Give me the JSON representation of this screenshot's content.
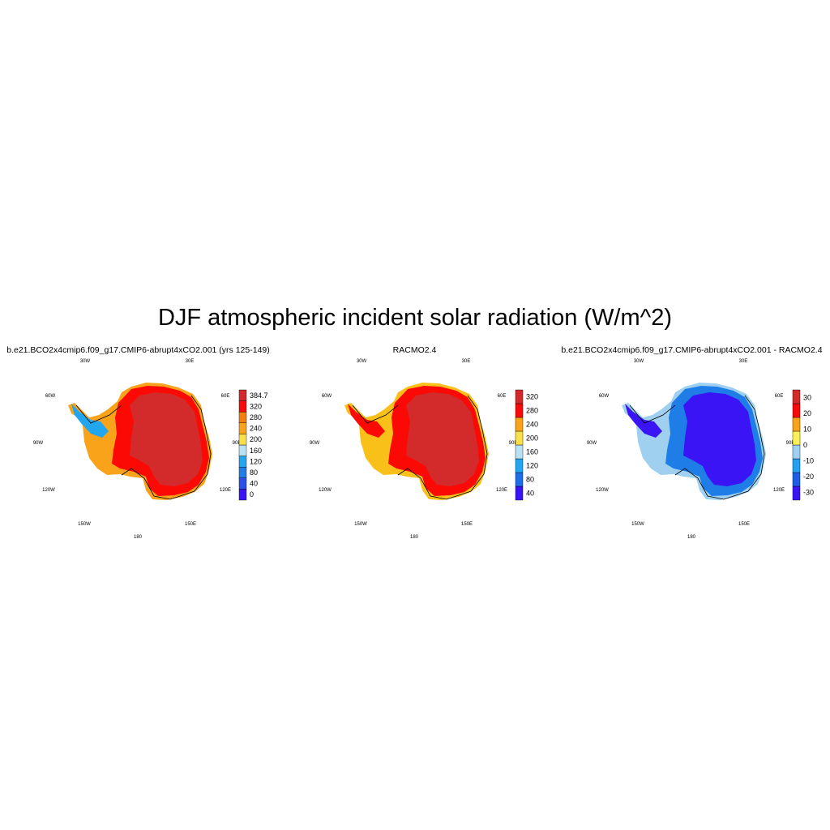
{
  "figure_title": "DJF atmospheric incident solar radiation (W/m^2)",
  "panels": [
    {
      "title": "b.e21.BCO2x4cmip6.f09_g17.CMIP6-abrupt4xCO2.001 (yrs 125-149)",
      "colorbar": {
        "colors": [
          "#3a14f5",
          "#2a50e8",
          "#1f7de8",
          "#23a6f0",
          "#b9e1f4",
          "#f9e04a",
          "#f9a31a",
          "#f57f0e",
          "#f90a0a",
          "#d22a2a"
        ],
        "labels": [
          "384.7",
          "320",
          "280",
          "240",
          "200",
          "160",
          "120",
          "80",
          "40",
          "0"
        ]
      },
      "map": {
        "interior": "#d32b2b",
        "mid": "#fb0a05",
        "coast": "#f9a31a",
        "peninsula": "#23a6f0"
      }
    },
    {
      "title": "RACMO2.4",
      "colorbar": {
        "colors": [
          "#3a14f5",
          "#1f6de8",
          "#23a6f0",
          "#b9e1f4",
          "#f9e04a",
          "#f9a31a",
          "#f90a0a",
          "#d22a2a"
        ],
        "labels": [
          "320",
          "280",
          "240",
          "200",
          "160",
          "120",
          "80",
          "40"
        ]
      },
      "map": {
        "interior": "#d32b2b",
        "mid": "#fb0a05",
        "coast": "#f9c01a",
        "peninsula": "#fb0a05"
      }
    },
    {
      "title": "b.e21.BCO2x4cmip6.f09_g17.CMIP6-abrupt4xCO2.001 - RACMO2.4",
      "colorbar": {
        "colors": [
          "#3a14f5",
          "#1f5de8",
          "#23a0f0",
          "#9fd0f0",
          "#fbf05a",
          "#f9a31a",
          "#f90a0a",
          "#d22a2a"
        ],
        "labels": [
          "30",
          "20",
          "10",
          "0",
          "-10",
          "-20",
          "-30"
        ]
      },
      "map": {
        "interior": "#3a14f5",
        "mid": "#1f7de8",
        "coast": "#9fd0f0",
        "peninsula": "#3a14f5"
      }
    }
  ],
  "graticule_labels": {
    "top_left": "30W",
    "top_right": "30E",
    "upper_left": "60W",
    "upper_right": "60E",
    "mid_left": "90W",
    "mid_right": "90E",
    "lower_left": "120W",
    "lower_right": "120E",
    "bottom_left": "150W",
    "bottom_right": "150E",
    "bottom": "180"
  }
}
